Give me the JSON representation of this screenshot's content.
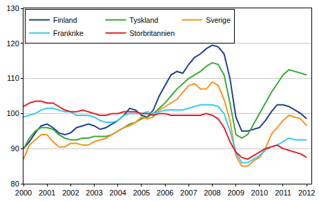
{
  "chart_data": {
    "type": "line",
    "x": [
      2000,
      2000.25,
      2000.5,
      2000.75,
      2001,
      2001.25,
      2001.5,
      2001.75,
      2002,
      2002.25,
      2002.5,
      2002.75,
      2003,
      2003.25,
      2003.5,
      2003.75,
      2004,
      2004.25,
      2004.5,
      2004.75,
      2005,
      2005.25,
      2005.5,
      2005.75,
      2006,
      2006.25,
      2006.5,
      2006.75,
      2007,
      2007.25,
      2007.5,
      2007.75,
      2008,
      2008.25,
      2008.5,
      2008.75,
      2009,
      2009.25,
      2009.5,
      2009.75,
      2010,
      2010.25,
      2010.5,
      2010.75,
      2011,
      2011.25,
      2011.5,
      2011.75,
      2012
    ],
    "series": [
      {
        "name": "Finland",
        "color": "#1f3f8f",
        "values": [
          90,
          92,
          94.5,
          96.5,
          97,
          96,
          94.5,
          94,
          94.5,
          96,
          96.5,
          97,
          96.5,
          95.5,
          96,
          97,
          98,
          99.5,
          101.5,
          101,
          99.5,
          99,
          101,
          105,
          108,
          111,
          112,
          111.5,
          114,
          116,
          117,
          118.5,
          119.5,
          119,
          117,
          110,
          99,
          95,
          95,
          95.5,
          96,
          98,
          100.5,
          102.5,
          102.5,
          102,
          101,
          100,
          98.5
        ]
      },
      {
        "name": "Tyskland",
        "color": "#3aaa35",
        "values": [
          90,
          93,
          95,
          96,
          96,
          95.5,
          94,
          93,
          92.5,
          92.5,
          93,
          93,
          93.5,
          93.5,
          93.5,
          94,
          95,
          96,
          97,
          97.5,
          98.5,
          99,
          100,
          101.5,
          103,
          105,
          107,
          108.5,
          110,
          111,
          112,
          113.5,
          114.5,
          114,
          111,
          103,
          94,
          93,
          94,
          97,
          100,
          103,
          106,
          108.5,
          111,
          112.5,
          112,
          111.5,
          111
        ]
      },
      {
        "name": "Sverige",
        "color": "#f7941d",
        "values": [
          87,
          91,
          92.5,
          94,
          94,
          92,
          90.5,
          90.5,
          91.5,
          91.5,
          91,
          91,
          92,
          92.5,
          93,
          94,
          95,
          96,
          96.5,
          97.5,
          99,
          98.5,
          99,
          101,
          102,
          103,
          104,
          106,
          108,
          108.5,
          107,
          107,
          109,
          108,
          104,
          98,
          88,
          85,
          85,
          86.5,
          87.5,
          90,
          94,
          96,
          98,
          99.5,
          99,
          98.5,
          96.5
        ]
      },
      {
        "name": "Frankrike",
        "color": "#33ccee",
        "values": [
          99,
          99.5,
          100,
          101,
          101.5,
          101.5,
          101,
          100.5,
          100.5,
          99.5,
          99.5,
          99.5,
          99,
          98,
          97.5,
          97.5,
          98,
          99.5,
          100,
          100,
          100,
          100.5,
          100,
          100.5,
          101,
          101,
          101,
          101,
          101.5,
          102,
          102.5,
          102.5,
          102.5,
          102,
          100,
          95,
          89,
          86,
          86,
          87,
          88,
          89.5,
          90.5,
          91,
          92,
          93,
          92.5,
          92.5,
          92.5
        ]
      },
      {
        "name": "Storbritannien",
        "color": "#e31e24",
        "values": [
          102,
          103,
          103.5,
          103.5,
          103,
          103,
          102,
          101,
          100.5,
          100.5,
          101,
          100.5,
          100,
          99.5,
          99.5,
          100,
          100,
          100.5,
          100.5,
          100.5,
          100,
          100,
          99.5,
          100,
          100,
          99.5,
          99.5,
          99.5,
          99.5,
          99.5,
          99.5,
          100,
          99.5,
          98.5,
          96,
          92,
          89,
          87.5,
          87,
          88,
          89,
          90,
          90.5,
          91,
          90,
          89.5,
          89,
          88.5,
          87.5
        ]
      }
    ],
    "xlim": [
      2000,
      2012.2
    ],
    "xticks": [
      2000,
      2001,
      2002,
      2003,
      2004,
      2005,
      2006,
      2007,
      2008,
      2009,
      2010,
      2011,
      2012
    ],
    "ylim": [
      80,
      130
    ],
    "yticks": [
      80,
      90,
      100,
      110,
      120,
      130
    ],
    "grid": true,
    "legend": "top-left"
  }
}
